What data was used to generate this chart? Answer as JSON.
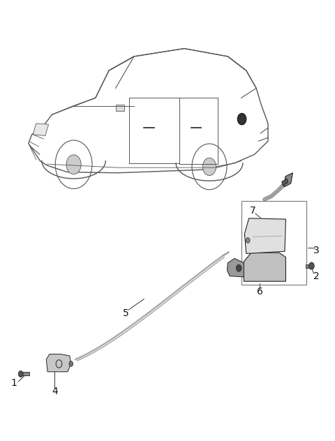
{
  "bg_color": "#ffffff",
  "line_color": "#555555",
  "dark_color": "#222222",
  "light_color": "#aaaaaa",
  "cable_color": "#999999",
  "fig_width": 4.8,
  "fig_height": 6.32,
  "dpi": 100,
  "label_fontsize": 10
}
